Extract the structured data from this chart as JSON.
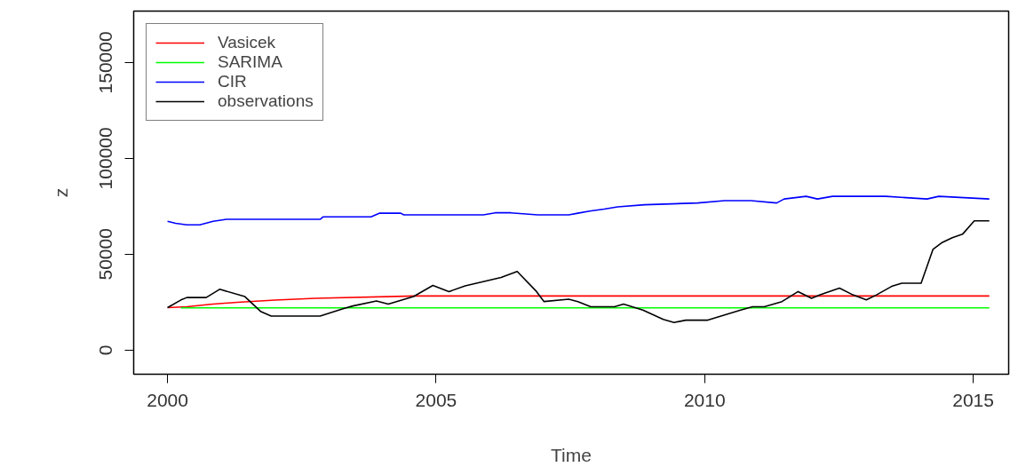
{
  "chart_data": {
    "type": "line",
    "xlabel": "Time",
    "ylabel": "z",
    "xlim": [
      1999.37,
      2015.66
    ],
    "xticks": [
      2000,
      2005,
      2010,
      2015
    ],
    "ylim": [
      -12600,
      176800
    ],
    "yticks": [
      0,
      50000,
      100000,
      150000
    ],
    "grid": false,
    "legend": "top left",
    "line_style": "solid",
    "marker": "none",
    "series": [
      {
        "name": "Vasicek",
        "color": "#ff0000",
        "x": [
          2000.0,
          2000.36,
          2000.8,
          2001.3,
          2002.0,
          2002.75,
          2004.6,
          2015.3
        ],
        "values": [
          22100,
          22600,
          23900,
          24900,
          26100,
          27000,
          28200,
          28200
        ]
      },
      {
        "name": "SARIMA",
        "color": "#00ff00",
        "x": [
          2000.25,
          2015.3
        ],
        "values": [
          22000,
          22000
        ]
      },
      {
        "name": "CIR",
        "color": "#0000ff",
        "x": [
          2000.0,
          2000.15,
          2000.36,
          2000.6,
          2000.85,
          2001.1,
          2002.84,
          2002.9,
          2003.79,
          2003.95,
          2004.34,
          2004.4,
          2005.88,
          2006.1,
          2006.39,
          2006.89,
          2007.47,
          2007.64,
          2007.86,
          2008.13,
          2008.38,
          2008.88,
          2009.87,
          2010.37,
          2010.86,
          2011.34,
          2011.48,
          2011.89,
          2012.1,
          2012.38,
          2013.37,
          2014.14,
          2014.36,
          2015.3
        ],
        "values": [
          67200,
          66100,
          65300,
          65300,
          67200,
          68200,
          68200,
          69500,
          69500,
          71400,
          71400,
          70500,
          70500,
          71600,
          71600,
          70500,
          70500,
          71400,
          72500,
          73500,
          74700,
          75800,
          76700,
          77900,
          77900,
          76700,
          78800,
          80200,
          78800,
          80200,
          80200,
          78800,
          80200,
          78800
        ]
      },
      {
        "name": "observations",
        "color": "#000000",
        "x": [
          2000.0,
          2000.25,
          2000.36,
          2000.72,
          2000.97,
          2001.44,
          2001.74,
          2001.93,
          2002.84,
          2003.28,
          2003.45,
          2003.89,
          2004.11,
          2004.58,
          2004.94,
          2005.24,
          2005.54,
          2006.21,
          2006.51,
          2006.87,
          2007.01,
          2007.47,
          2007.64,
          2007.88,
          2008.32,
          2008.49,
          2008.65,
          2008.85,
          2009.23,
          2009.43,
          2009.65,
          2010.06,
          2010.67,
          2010.89,
          2011.11,
          2011.44,
          2011.74,
          2011.99,
          2012.15,
          2012.51,
          2012.76,
          2013.01,
          2013.2,
          2013.48,
          2013.67,
          2014.03,
          2014.25,
          2014.41,
          2014.61,
          2014.8,
          2015.02,
          2015.3
        ],
        "values": [
          22100,
          26150,
          27400,
          27400,
          31700,
          27900,
          20000,
          17700,
          17700,
          21700,
          23000,
          25600,
          24000,
          27900,
          33700,
          30500,
          33500,
          37900,
          41000,
          30500,
          25300,
          26500,
          25300,
          22600,
          22600,
          24000,
          22600,
          20900,
          16000,
          14400,
          15600,
          15600,
          20900,
          22600,
          22600,
          25300,
          30500,
          27000,
          28800,
          32300,
          28800,
          26200,
          28800,
          33200,
          34900,
          34900,
          52500,
          55900,
          58600,
          60400,
          67400,
          67400
        ]
      }
    ]
  }
}
